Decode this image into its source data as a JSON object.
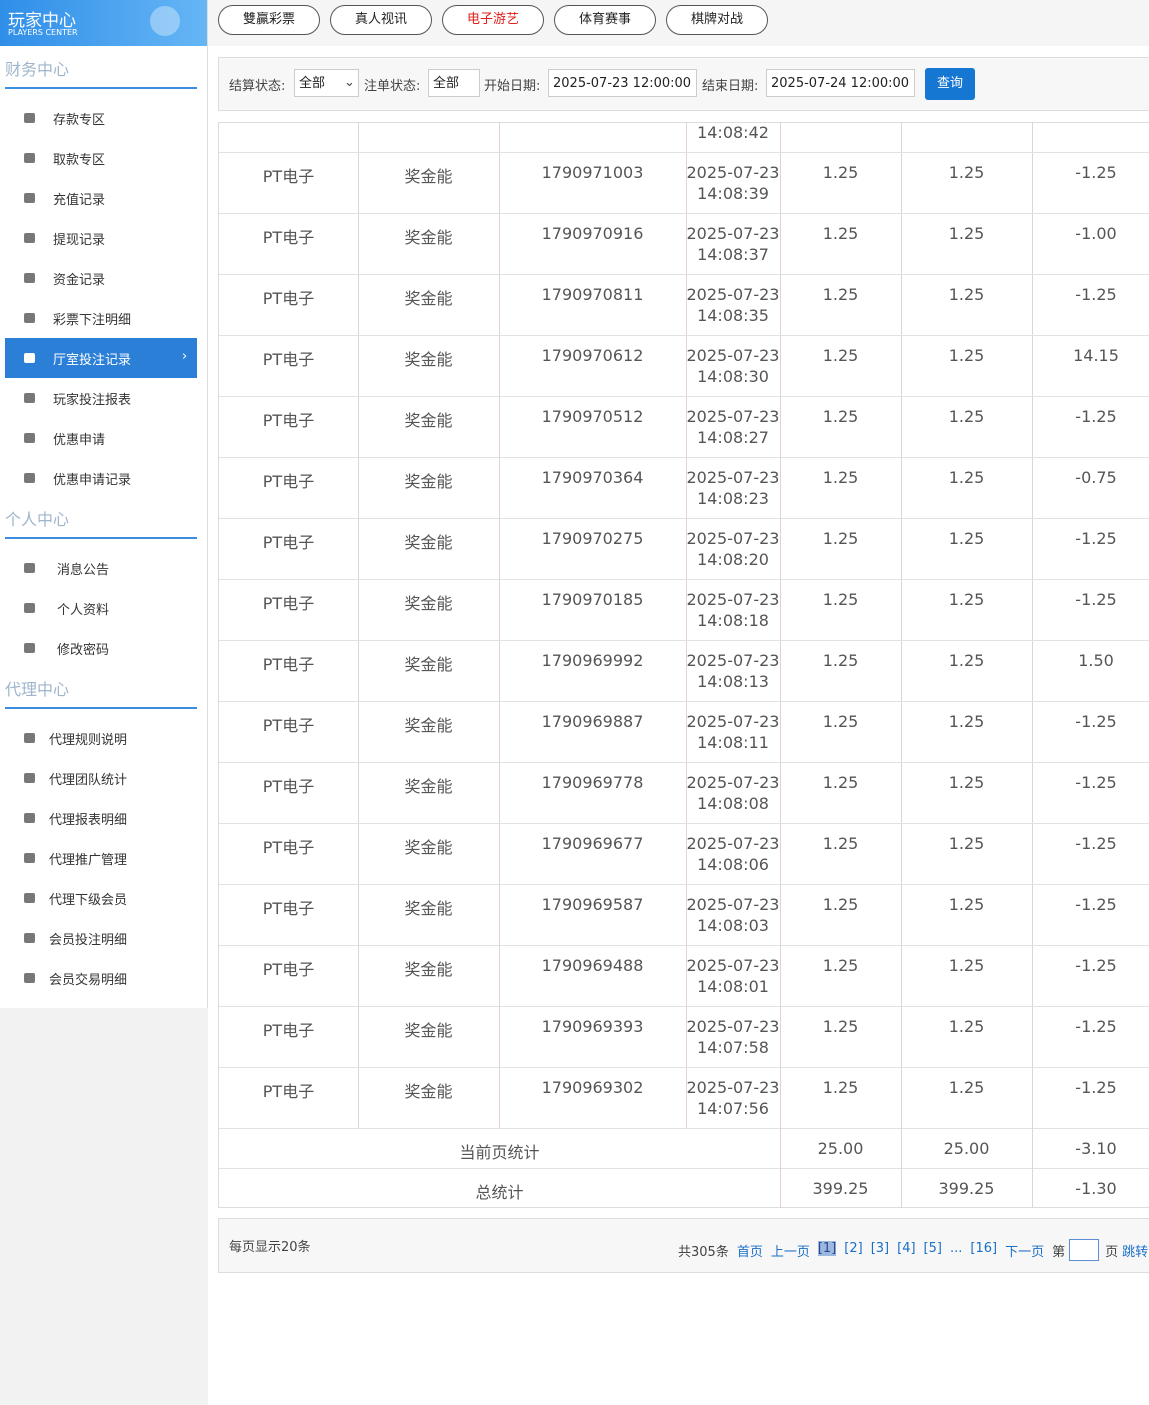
{
  "header": {
    "title": "玩家中心",
    "subtitle": "PLAYERS CENTER"
  },
  "sidebar": [
    {
      "title": "财务中心",
      "items": [
        {
          "label": "存款专区"
        },
        {
          "label": "取款专区"
        },
        {
          "label": "充值记录"
        },
        {
          "label": "提现记录"
        },
        {
          "label": "资金记录"
        },
        {
          "label": "彩票下注明细"
        },
        {
          "label": "厅室投注记录",
          "active": true
        },
        {
          "label": "玩家投注报表"
        },
        {
          "label": "优惠申请"
        },
        {
          "label": "优惠申请记录"
        }
      ]
    },
    {
      "title": "个人中心",
      "items": [
        {
          "label": "消息公告"
        },
        {
          "label": "个人资料"
        },
        {
          "label": "修改密码"
        }
      ]
    },
    {
      "title": "代理中心",
      "items": [
        {
          "label": "代理规则说明"
        },
        {
          "label": "代理团队统计"
        },
        {
          "label": "代理报表明细"
        },
        {
          "label": "代理推广管理"
        },
        {
          "label": "代理下级会员"
        },
        {
          "label": "会员投注明细"
        },
        {
          "label": "会员交易明细"
        }
      ]
    }
  ],
  "tabs": [
    {
      "label": "雙贏彩票"
    },
    {
      "label": "真人视讯"
    },
    {
      "label": "电子游艺",
      "active": true
    },
    {
      "label": "体育赛事"
    },
    {
      "label": "棋牌对战"
    }
  ],
  "filters": {
    "settle_label": "结算状态:",
    "settle_value": "全部",
    "order_label": "注单状态:",
    "order_value": "全部",
    "start_label": "开始日期:",
    "start_value": "2025-07-23 12:00:00",
    "end_label": "结束日期:",
    "end_value": "2025-07-24 12:00:00",
    "button": "查询"
  },
  "table": {
    "partial_time": "14:08:42",
    "rows": [
      [
        "PT电子",
        "奖金能",
        "1790971003",
        "2025-07-23",
        "14:08:39",
        "1.25",
        "1.25",
        "-1.25"
      ],
      [
        "PT电子",
        "奖金能",
        "1790970916",
        "2025-07-23",
        "14:08:37",
        "1.25",
        "1.25",
        "-1.00"
      ],
      [
        "PT电子",
        "奖金能",
        "1790970811",
        "2025-07-23",
        "14:08:35",
        "1.25",
        "1.25",
        "-1.25"
      ],
      [
        "PT电子",
        "奖金能",
        "1790970612",
        "2025-07-23",
        "14:08:30",
        "1.25",
        "1.25",
        "14.15"
      ],
      [
        "PT电子",
        "奖金能",
        "1790970512",
        "2025-07-23",
        "14:08:27",
        "1.25",
        "1.25",
        "-1.25"
      ],
      [
        "PT电子",
        "奖金能",
        "1790970364",
        "2025-07-23",
        "14:08:23",
        "1.25",
        "1.25",
        "-0.75"
      ],
      [
        "PT电子",
        "奖金能",
        "1790970275",
        "2025-07-23",
        "14:08:20",
        "1.25",
        "1.25",
        "-1.25"
      ],
      [
        "PT电子",
        "奖金能",
        "1790970185",
        "2025-07-23",
        "14:08:18",
        "1.25",
        "1.25",
        "-1.25"
      ],
      [
        "PT电子",
        "奖金能",
        "1790969992",
        "2025-07-23",
        "14:08:13",
        "1.25",
        "1.25",
        "1.50"
      ],
      [
        "PT电子",
        "奖金能",
        "1790969887",
        "2025-07-23",
        "14:08:11",
        "1.25",
        "1.25",
        "-1.25"
      ],
      [
        "PT电子",
        "奖金能",
        "1790969778",
        "2025-07-23",
        "14:08:08",
        "1.25",
        "1.25",
        "-1.25"
      ],
      [
        "PT电子",
        "奖金能",
        "1790969677",
        "2025-07-23",
        "14:08:06",
        "1.25",
        "1.25",
        "-1.25"
      ],
      [
        "PT电子",
        "奖金能",
        "1790969587",
        "2025-07-23",
        "14:08:03",
        "1.25",
        "1.25",
        "-1.25"
      ],
      [
        "PT电子",
        "奖金能",
        "1790969488",
        "2025-07-23",
        "14:08:01",
        "1.25",
        "1.25",
        "-1.25"
      ],
      [
        "PT电子",
        "奖金能",
        "1790969393",
        "2025-07-23",
        "14:07:58",
        "1.25",
        "1.25",
        "-1.25"
      ],
      [
        "PT电子",
        "奖金能",
        "1790969302",
        "2025-07-23",
        "14:07:56",
        "1.25",
        "1.25",
        "-1.25"
      ]
    ],
    "page_total": {
      "label": "当前页统计",
      "values": [
        "25.00",
        "25.00",
        "-3.10"
      ]
    },
    "grand_total": {
      "label": "总统计",
      "values": [
        "399.25",
        "399.25",
        "-1.30"
      ]
    }
  },
  "pagination": {
    "per_page": "每页显示20条",
    "total": "共305条",
    "first": "首页",
    "prev": "上一页",
    "pages": [
      {
        "label": "[1]",
        "current": true
      },
      {
        "label": "[2]"
      },
      {
        "label": "[3]"
      },
      {
        "label": "[4]"
      },
      {
        "label": "[5]"
      },
      {
        "label": "..."
      },
      {
        "label": "[16]"
      }
    ],
    "next": "下一页",
    "goto_prefix": "第",
    "goto_suffix": "页",
    "jump": "跳转"
  }
}
